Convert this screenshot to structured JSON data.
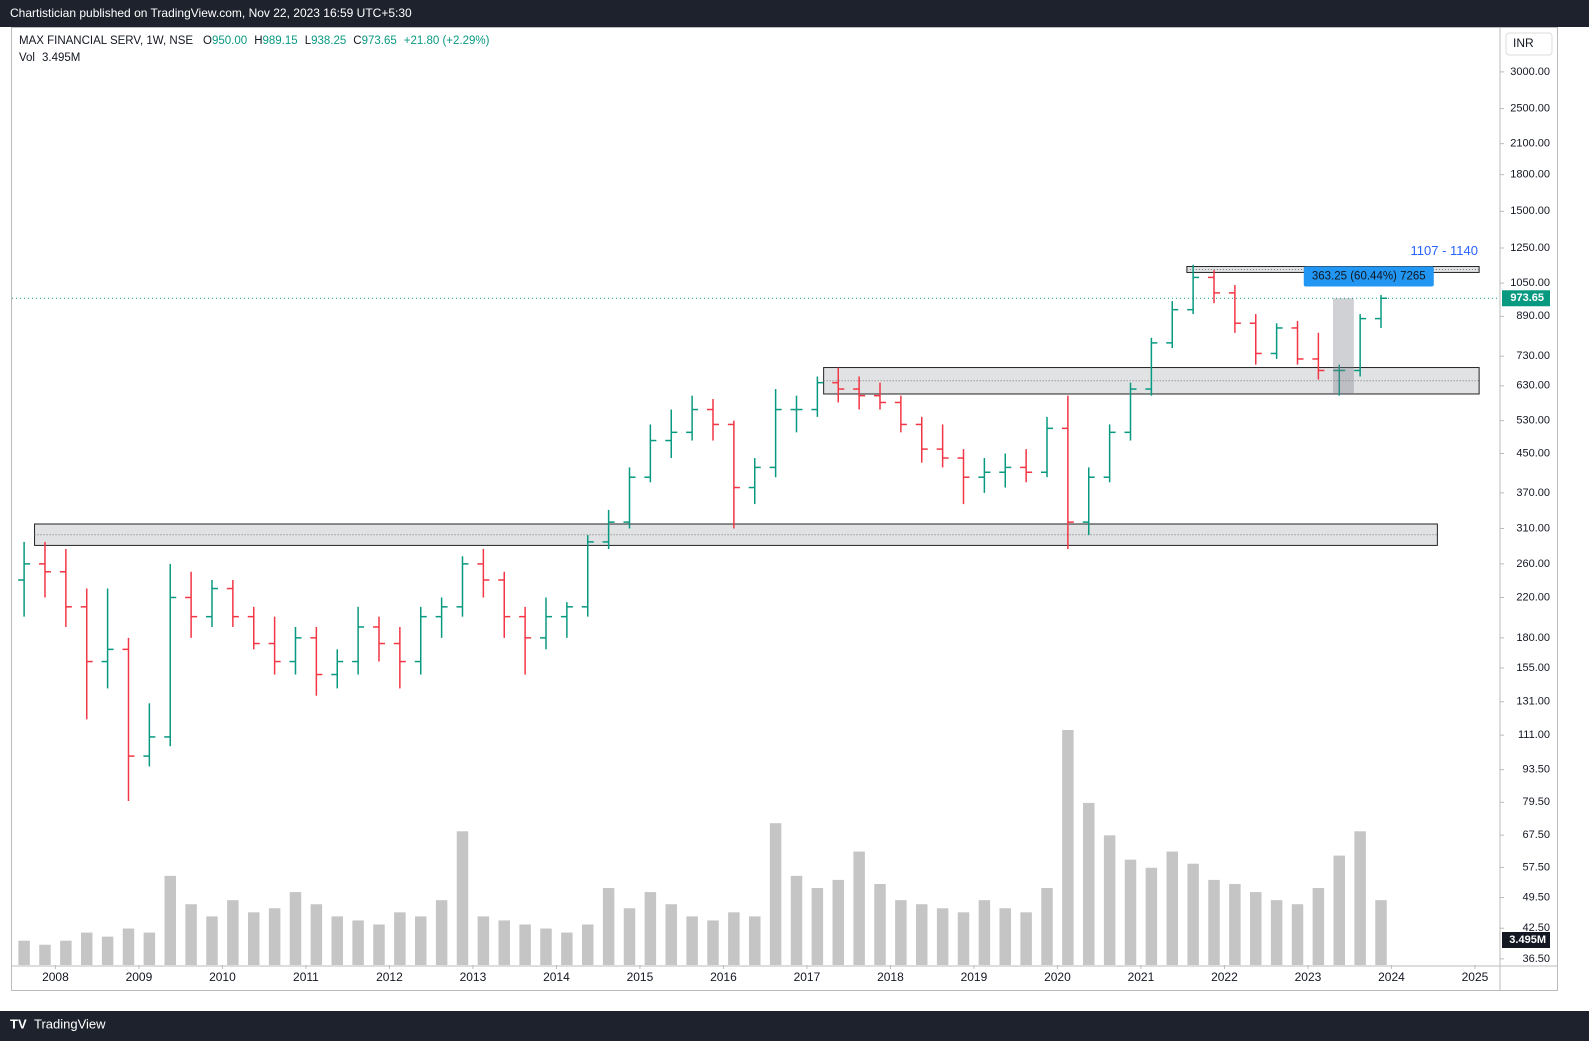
{
  "header": {
    "publisher": "Chartistician published on TradingView.com, Nov 22, 2023 16:59 UTC+5:30",
    "footer": "TradingView"
  },
  "chart_data": {
    "type": "ohlc",
    "symbol": "MAX FINANCIAL SERV, 1W, NSE",
    "legend": [
      {
        "key": "O",
        "text": "950.00"
      },
      {
        "key": "H",
        "text": "989.15"
      },
      {
        "key": "L",
        "text": "938.25"
      },
      {
        "key": "C",
        "text": "973.65"
      },
      {
        "key": "",
        "text": "+21.80 (+2.29%)"
      }
    ],
    "volume_name": "Vol",
    "volume_text": "3.495M",
    "currency": "INR",
    "up_color": "#089981",
    "down_color": "#f23645",
    "volume_color": "#9e9e9e",
    "log_scale": true,
    "x": [
      2007.5,
      2007.75,
      2008,
      2008.25,
      2008.5,
      2008.75,
      2009,
      2009.25,
      2009.5,
      2009.75,
      2010,
      2010.25,
      2010.5,
      2010.75,
      2011,
      2011.25,
      2011.5,
      2011.75,
      2012,
      2012.25,
      2012.5,
      2012.75,
      2013,
      2013.25,
      2013.5,
      2013.75,
      2014,
      2014.25,
      2014.5,
      2014.75,
      2015,
      2015.25,
      2015.5,
      2015.75,
      2016,
      2016.25,
      2016.5,
      2016.75,
      2017,
      2017.25,
      2017.5,
      2017.75,
      2018,
      2018.25,
      2018.5,
      2018.75,
      2019,
      2019.25,
      2019.5,
      2019.75,
      2020,
      2020.25,
      2020.5,
      2020.75,
      2021,
      2021.25,
      2021.5,
      2021.75,
      2022,
      2022.25,
      2022.5,
      2022.75,
      2023,
      2023.25,
      2023.5,
      2023.75
    ],
    "open": [
      240,
      260,
      250,
      210,
      160,
      170,
      100,
      110,
      220,
      200,
      230,
      200,
      175,
      160,
      180,
      150,
      160,
      190,
      175,
      160,
      200,
      210,
      260,
      240,
      200,
      180,
      200,
      210,
      290,
      320,
      400,
      480,
      500,
      560,
      520,
      380,
      420,
      560,
      560,
      640,
      620,
      600,
      580,
      520,
      460,
      440,
      400,
      410,
      420,
      410,
      510,
      320,
      400,
      500,
      620,
      780,
      920,
      1080,
      1000,
      860,
      740,
      840,
      720,
      680,
      680,
      880
    ],
    "high": [
      290,
      290,
      280,
      230,
      230,
      180,
      130,
      260,
      250,
      240,
      240,
      210,
      200,
      190,
      190,
      170,
      210,
      200,
      190,
      210,
      220,
      270,
      280,
      250,
      210,
      220,
      215,
      300,
      340,
      420,
      520,
      560,
      600,
      590,
      530,
      440,
      620,
      600,
      660,
      690,
      660,
      640,
      600,
      540,
      520,
      460,
      440,
      450,
      460,
      540,
      600,
      420,
      520,
      640,
      800,
      960,
      1150,
      1120,
      1040,
      900,
      860,
      870,
      820,
      700,
      900,
      990
    ],
    "low": [
      200,
      220,
      190,
      120,
      140,
      80,
      95,
      105,
      180,
      190,
      190,
      170,
      150,
      150,
      135,
      140,
      150,
      160,
      140,
      150,
      180,
      200,
      220,
      180,
      150,
      170,
      180,
      200,
      280,
      310,
      390,
      440,
      480,
      480,
      310,
      350,
      400,
      500,
      540,
      580,
      560,
      560,
      500,
      430,
      420,
      350,
      370,
      380,
      390,
      400,
      280,
      300,
      390,
      480,
      600,
      760,
      900,
      950,
      820,
      700,
      720,
      700,
      650,
      600,
      660,
      840
    ],
    "close": [
      260,
      250,
      210,
      160,
      170,
      100,
      110,
      220,
      200,
      230,
      200,
      175,
      160,
      180,
      150,
      160,
      190,
      175,
      160,
      200,
      210,
      260,
      240,
      200,
      180,
      200,
      210,
      290,
      320,
      400,
      480,
      500,
      560,
      520,
      380,
      420,
      560,
      560,
      640,
      620,
      600,
      580,
      520,
      460,
      440,
      400,
      410,
      420,
      410,
      510,
      320,
      400,
      500,
      620,
      780,
      920,
      1080,
      1000,
      860,
      740,
      840,
      720,
      680,
      680,
      880,
      973.65
    ],
    "volume": [
      0.6,
      0.5,
      0.6,
      0.8,
      0.7,
      0.9,
      0.8,
      2.2,
      1.5,
      1.2,
      1.6,
      1.3,
      1.4,
      1.8,
      1.5,
      1.2,
      1.1,
      1.0,
      1.3,
      1.2,
      1.6,
      3.3,
      1.2,
      1.1,
      1.0,
      0.9,
      0.8,
      1.0,
      1.9,
      1.4,
      1.8,
      1.5,
      1.2,
      1.1,
      1.3,
      1.2,
      3.5,
      2.2,
      1.9,
      2.1,
      2.8,
      2.0,
      1.6,
      1.5,
      1.4,
      1.3,
      1.6,
      1.4,
      1.3,
      1.9,
      5.8,
      4.0,
      3.2,
      2.6,
      2.4,
      2.8,
      2.5,
      2.1,
      2.0,
      1.8,
      1.6,
      1.5,
      1.9,
      2.7,
      3.3,
      1.6
    ],
    "last_price": 973.65,
    "zones": [
      {
        "x": [
          2007.75,
          2024.55
        ],
        "low": 285,
        "high": 317
      },
      {
        "x": [
          2017.2,
          2025.05
        ],
        "low": 605,
        "high": 690
      },
      {
        "x": [
          2021.55,
          2025.05
        ],
        "low": 1107,
        "high": 1140
      }
    ],
    "target_label": "1107 - 1140",
    "measure_label": "363.25 (60.44%) 7265",
    "xlim": [
      2007.48,
      2025.3
    ],
    "xticks": [
      2008,
      2009,
      2010,
      2011,
      2012,
      2013,
      2014,
      2015,
      2016,
      2017,
      2018,
      2019,
      2020,
      2021,
      2022,
      2023,
      2024,
      2025
    ],
    "ylim": [
      35.4,
      3750
    ],
    "yticks": [
      {
        "value": 36.5,
        "label": "36.50"
      },
      {
        "value": 42.5,
        "label": "42.50"
      },
      {
        "value": 49.5,
        "label": "49.50"
      },
      {
        "value": 57.5,
        "label": "57.50"
      },
      {
        "value": 67.5,
        "label": "67.50"
      },
      {
        "value": 79.5,
        "label": "79.50"
      },
      {
        "value": 93.5,
        "label": "93.50"
      },
      {
        "value": 111,
        "label": "111.00"
      },
      {
        "value": 131,
        "label": "131.00"
      },
      {
        "value": 155,
        "label": "155.00"
      },
      {
        "value": 180,
        "label": "180.00"
      },
      {
        "value": 220,
        "label": "220.00"
      },
      {
        "value": 260,
        "label": "260.00"
      },
      {
        "value": 310,
        "label": "310.00"
      },
      {
        "value": 370,
        "label": "370.00"
      },
      {
        "value": 450,
        "label": "450.00"
      },
      {
        "value": 530,
        "label": "530.00"
      },
      {
        "value": 630,
        "label": "630.00"
      },
      {
        "value": 730,
        "label": "730.00"
      },
      {
        "value": 890,
        "label": "890.00"
      },
      {
        "value": 1050,
        "label": "1050.00"
      },
      {
        "value": 1250,
        "label": "1250.00"
      },
      {
        "value": 1500,
        "label": "1500.00"
      },
      {
        "value": 1800,
        "label": "1800.00"
      },
      {
        "value": 2100,
        "label": "2100.00"
      },
      {
        "value": 2500,
        "label": "2500.00"
      },
      {
        "value": 3000,
        "label": "3000.00"
      }
    ]
  }
}
